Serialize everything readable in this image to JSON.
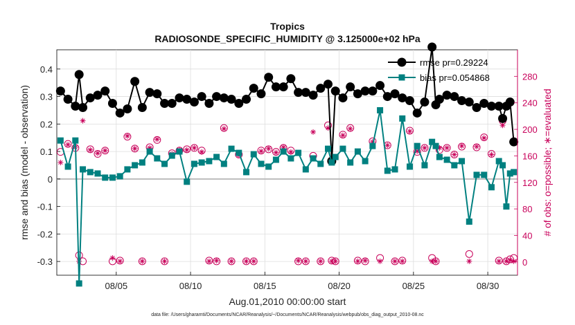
{
  "chart_data": {
    "type": "line",
    "title": "Tropics",
    "subtitle": "RADIOSONDE_SPECIFIC_HUMIDITY @ 3.125000e+02 hPa",
    "xlabel": "Aug.01,2010 00:00:00 start",
    "ylabel": "rmse and bias (model - observation)",
    "y2label": "# of obs: o=possible; ∗=evaluated",
    "footer": "data file: /Users/gharamti/Documents/NCAR/Reanalysis/~/Documents/NCAR/Reanalysis/webpub/obs_diag_output_2010-08.nc",
    "xlim": [
      1.0,
      32.0
    ],
    "ylim": [
      -0.35,
      0.47
    ],
    "y2lim": [
      -20,
      320
    ],
    "xticks": [
      5,
      10,
      15,
      20,
      25,
      30
    ],
    "xtick_labels": [
      "08/05",
      "08/10",
      "08/15",
      "08/20",
      "08/25",
      "08/30"
    ],
    "yticks": [
      0.4,
      0.3,
      0.2,
      0.1,
      0,
      -0.1,
      -0.2,
      -0.3
    ],
    "ytick_labels": [
      "0.4",
      "0.3",
      "0.2",
      "0.1",
      "0",
      "-0.1",
      "-0.2",
      "-0.3"
    ],
    "y2ticks": [
      280,
      240,
      200,
      160,
      120,
      80,
      40,
      0
    ],
    "y2tick_labels": [
      "280",
      "240",
      "200",
      "160",
      "120",
      "80",
      "40",
      "0"
    ],
    "legend": {
      "position": "top-right",
      "entries": [
        "rmse pr=0.29224",
        "bias pr=0.054868"
      ]
    },
    "colors": {
      "rmse": "#000000",
      "bias": "#008080",
      "obs": "#c8005a",
      "zero_line": "#bbbbbb"
    },
    "x": [
      1.25,
      1.75,
      2.25,
      2.5,
      2.75,
      3.25,
      3.75,
      4.25,
      4.75,
      5.25,
      5.75,
      6.25,
      6.75,
      7.25,
      7.75,
      8.25,
      8.75,
      9.25,
      9.75,
      10.25,
      10.75,
      11.25,
      11.75,
      12.25,
      12.75,
      13.25,
      13.75,
      14.25,
      14.75,
      15.25,
      15.75,
      16.25,
      16.75,
      17.25,
      17.75,
      18.25,
      18.75,
      19.25,
      19.5,
      19.75,
      20.25,
      20.75,
      21.25,
      21.75,
      22.25,
      22.75,
      23.25,
      23.75,
      24.25,
      24.75,
      25.25,
      25.75,
      26.25,
      26.5,
      26.75,
      27.25,
      27.75,
      28.25,
      28.75,
      29.25,
      29.75,
      30.25,
      30.75,
      31.0,
      31.25,
      31.5,
      31.75
    ],
    "series": [
      {
        "name": "rmse",
        "values": [
          0.32,
          0.29,
          0.265,
          0.38,
          0.26,
          0.295,
          0.305,
          0.32,
          0.275,
          0.24,
          0.255,
          0.355,
          0.26,
          0.315,
          0.31,
          0.275,
          0.275,
          0.295,
          0.29,
          0.28,
          0.3,
          0.275,
          0.3,
          0.295,
          0.29,
          0.275,
          0.29,
          0.33,
          0.31,
          0.37,
          0.335,
          0.335,
          0.365,
          0.315,
          0.315,
          0.305,
          0.33,
          0.345,
          0.065,
          0.32,
          0.295,
          0.335,
          0.31,
          0.32,
          0.32,
          0.34,
          0.3,
          0.31,
          0.295,
          0.285,
          0.24,
          0.28,
          0.48,
          0.27,
          0.29,
          0.305,
          0.3,
          0.285,
          0.28,
          0.26,
          0.275,
          0.265,
          0.265,
          0.22,
          0.265,
          0.28,
          0.135
        ]
      },
      {
        "name": "bias",
        "values": [
          0.14,
          0.045,
          0.14,
          -0.38,
          0.035,
          0.025,
          0.02,
          0.005,
          0.005,
          0.01,
          0.035,
          0.05,
          0.06,
          0.1,
          0.075,
          0.055,
          0.085,
          0.1,
          -0.01,
          0.055,
          0.06,
          0.065,
          0.08,
          0.055,
          0.11,
          0.095,
          0.025,
          0.09,
          0.055,
          0.045,
          0.07,
          0.1,
          0.075,
          0.095,
          0.035,
          0.075,
          0.055,
          0.11,
          0.06,
          0.08,
          0.11,
          0.06,
          0.1,
          0.065,
          0.12,
          0.25,
          0.03,
          0.035,
          0.22,
          0.045,
          0.12,
          0.05,
          0.135,
          0.12,
          0.08,
          0.07,
          0.05,
          0.065,
          -0.155,
          0.015,
          0.015,
          -0.03,
          0.065,
          0.05,
          -0.1,
          0.02,
          0.025
        ]
      },
      {
        "name": "obs_possible",
        "values": [
          166,
          178,
          172,
          10,
          1,
          170,
          163,
          168,
          1,
          2,
          189,
          171,
          1,
          173,
          184,
          1,
          164,
          168,
          170,
          172,
          168,
          2,
          1,
          202,
          1,
          162,
          1,
          1,
          168,
          170,
          166,
          172,
          168,
          1,
          1,
          160,
          1,
          206,
          2,
          1,
          192,
          202,
          2,
          1,
          182,
          6,
          176,
          1,
          2,
          198,
          166,
          172,
          6,
          1,
          169,
          172,
          162,
          174,
          12,
          173,
          188,
          163,
          2,
          213,
          1,
          4,
          6
        ]
      },
      {
        "name": "obs_evaluated",
        "values": [
          150,
          177,
          173,
          1,
          213,
          169,
          164,
          168,
          6,
          1,
          190,
          171,
          1,
          172,
          185,
          1,
          163,
          169,
          169,
          172,
          166,
          1,
          2,
          201,
          1,
          161,
          1,
          1,
          167,
          171,
          165,
          173,
          166,
          2,
          1,
          196,
          1,
          202,
          1,
          1,
          191,
          201,
          1,
          2,
          181,
          1,
          176,
          1,
          1,
          197,
          167,
          172,
          1,
          1,
          172,
          172,
          162,
          175,
          1,
          174,
          187,
          162,
          1,
          206,
          1,
          3,
          1
        ]
      }
    ]
  }
}
